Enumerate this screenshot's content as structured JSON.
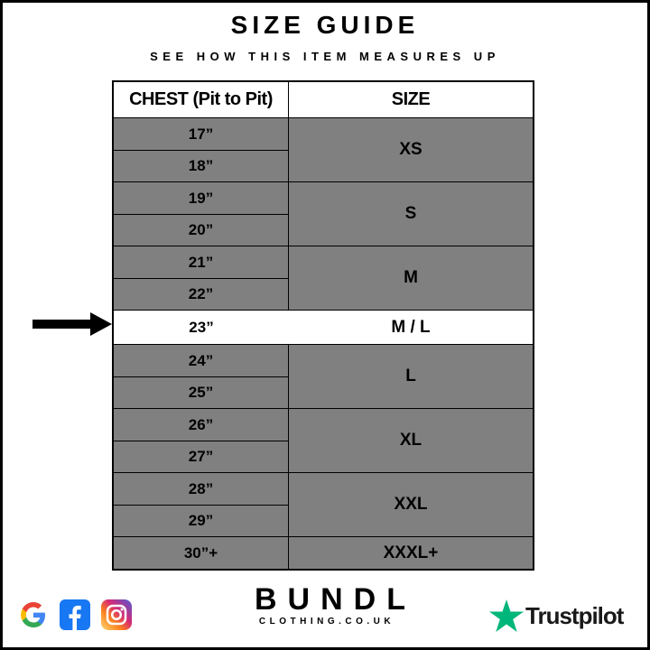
{
  "title": "SIZE GUIDE",
  "subtitle": "SEE HOW THIS ITEM MEASURES UP",
  "table": {
    "headers": [
      "CHEST (Pit to Pit)",
      "SIZE"
    ],
    "groups": [
      {
        "chest": [
          "17”",
          "18”"
        ],
        "size": "XS"
      },
      {
        "chest": [
          "19”",
          "20”"
        ],
        "size": "S"
      },
      {
        "chest": [
          "21”",
          "22”"
        ],
        "size": "M"
      },
      {
        "chest": [
          "23”"
        ],
        "size": "M / L",
        "highlighted": true
      },
      {
        "chest": [
          "24”",
          "25”"
        ],
        "size": "L"
      },
      {
        "chest": [
          "26”",
          "27”"
        ],
        "size": "XL"
      },
      {
        "chest": [
          "28”",
          "29”"
        ],
        "size": "XXL"
      },
      {
        "chest": [
          "30”+"
        ],
        "size": "XXXL+"
      }
    ]
  },
  "colors": {
    "row_fill": "#808080",
    "highlight_fill": "#ffffff",
    "trustpilot_green": "#00b67a"
  },
  "footer": {
    "social_icons": [
      "google-icon",
      "facebook-icon",
      "instagram-icon"
    ],
    "brand_name": "BUNDL",
    "brand_domain": "CLOTHING.CO.UK",
    "trustpilot_label": "Trustpilot"
  }
}
